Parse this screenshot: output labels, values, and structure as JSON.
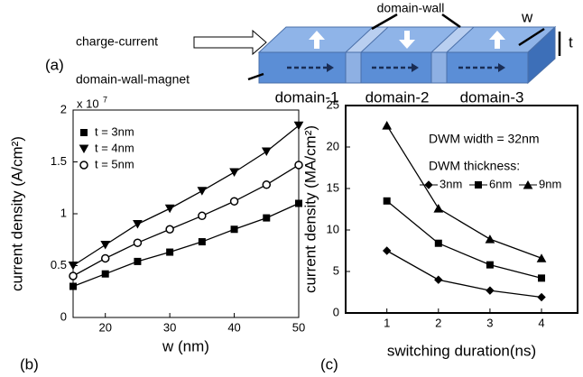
{
  "diagram": {
    "panel_label": "(a)",
    "input_label": "charge-current",
    "wall_label": "domain-wall",
    "magnet_label": "domain-wall-magnet",
    "width_label": "w",
    "thickness_label": "t",
    "domains": [
      "domain-1",
      "domain-2",
      "domain-3"
    ]
  },
  "chart_data": [
    {
      "type": "line",
      "panel_label": "(b)",
      "x_label": "w (nm)",
      "y_label": "current density (A/cm²)",
      "axis_multiplier": {
        "base": "x 10",
        "exponent": "7"
      },
      "x": [
        15,
        20,
        25,
        30,
        35,
        40,
        45,
        50
      ],
      "xlim": [
        15,
        50
      ],
      "xticks": [
        20,
        30,
        40,
        50
      ],
      "ylim": [
        0,
        2
      ],
      "yticks": [
        0,
        0.5,
        1,
        1.5,
        2
      ],
      "grid": false,
      "legend": "upper left",
      "series": [
        {
          "name": "t = 3nm",
          "color": "#000000",
          "marker": "square",
          "values": [
            0.3,
            0.42,
            0.54,
            0.63,
            0.73,
            0.85,
            0.96,
            1.1
          ]
        },
        {
          "name": "t = 4nm",
          "color": "#000000",
          "marker": "triangle-down",
          "values": [
            0.5,
            0.7,
            0.9,
            1.05,
            1.22,
            1.4,
            1.6,
            1.85
          ]
        },
        {
          "name": "t = 5nm",
          "color": "#000000",
          "marker": "circle",
          "values": [
            0.4,
            0.57,
            0.72,
            0.85,
            0.98,
            1.12,
            1.28,
            1.47
          ]
        }
      ]
    },
    {
      "type": "line",
      "panel_label": "(c)",
      "x_label": "switching duration(ns)",
      "y_label": "current density (MA/cm²)",
      "annotations": [
        "DWM width = 32nm",
        "DWM thickness:"
      ],
      "x": [
        1,
        2,
        3,
        4
      ],
      "xlim": [
        0.2,
        4.7
      ],
      "xticks": [
        1,
        2,
        3,
        4
      ],
      "ylim": [
        0,
        25
      ],
      "yticks": [
        0,
        5,
        10,
        15,
        20,
        25
      ],
      "grid": false,
      "legend": "upper right",
      "series": [
        {
          "name": "3nm",
          "color": "#000000",
          "marker": "diamond",
          "values": [
            7.5,
            4,
            2.7,
            1.9
          ]
        },
        {
          "name": "6nm",
          "color": "#000000",
          "marker": "square",
          "values": [
            13.5,
            8.4,
            5.8,
            4.2
          ]
        },
        {
          "name": "9nm",
          "color": "#000000",
          "marker": "triangle-up",
          "values": [
            22.6,
            12.6,
            8.9,
            6.6
          ]
        }
      ]
    }
  ]
}
